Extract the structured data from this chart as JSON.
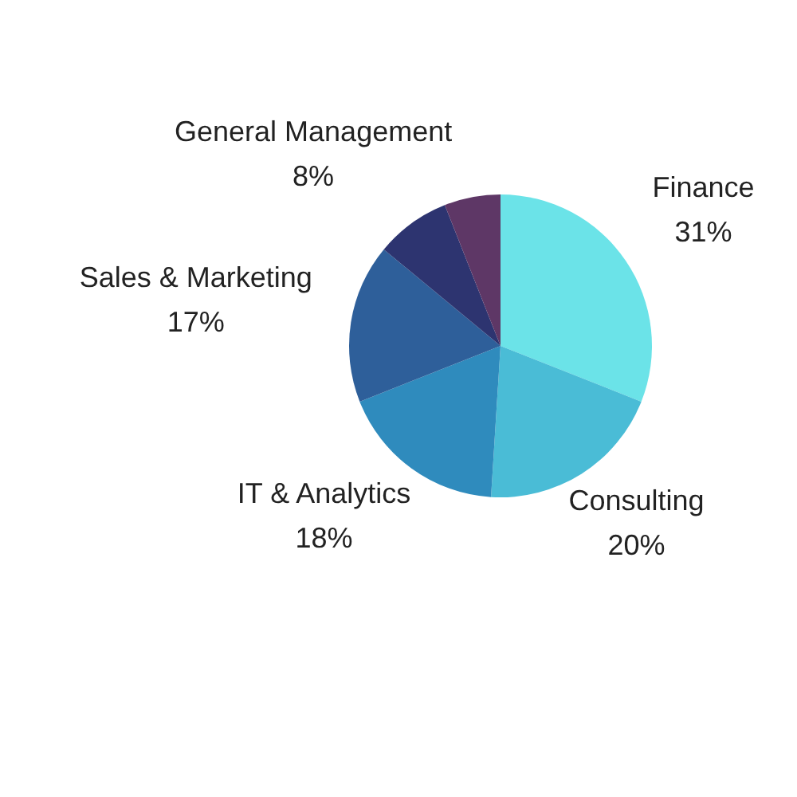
{
  "chart_data": {
    "type": "pie",
    "categories": [
      "Finance",
      "Consulting",
      "IT & Analytics",
      "Sales & Marketing",
      "General Management",
      null
    ],
    "values": [
      31,
      20,
      18,
      17,
      8,
      6
    ],
    "value_labels": [
      "31%",
      "20%",
      "18%",
      "17%",
      "8%",
      null
    ],
    "colors": [
      "#6be3e8",
      "#4abcd6",
      "#2f8bbd",
      "#2e5f9a",
      "#2d3470",
      "#5e3766"
    ],
    "legend": false
  }
}
